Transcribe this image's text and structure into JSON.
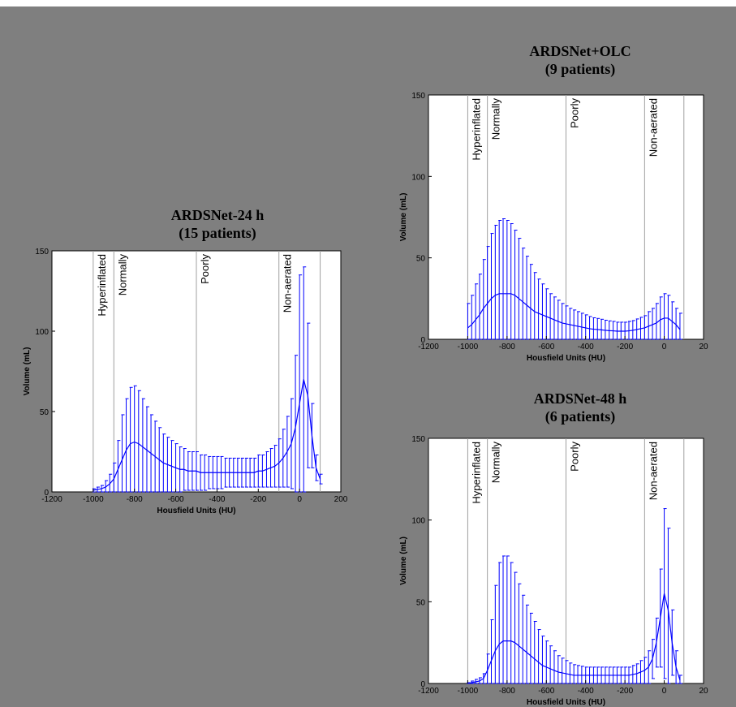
{
  "colors": {
    "background": "#7f7f7f",
    "plot_bg": "#ffffff",
    "series": "#0000ff",
    "divider": "#a0a0a0"
  },
  "chart_data": [
    {
      "type": "line",
      "title": [
        "ARDSNet-24 h",
        "(15 patients)"
      ],
      "xlabel": "Housfield Units (HU)",
      "ylabel": "Volume (mL)",
      "xlim": [
        -1200,
        200
      ],
      "ylim": [
        0,
        150
      ],
      "xticks": [
        "-1200",
        "-1000",
        "-800",
        "-600",
        "-400",
        "-200",
        "0",
        "200"
      ],
      "yticks": [
        "0",
        "50",
        "100",
        "150"
      ],
      "regions": [
        {
          "label": "Hyperinflated",
          "x": -1000
        },
        {
          "label": "Normally",
          "x": -900
        },
        {
          "label": "Poorly",
          "x": -500
        },
        {
          "label": "Non-aerated",
          "x": -100
        }
      ],
      "region_end": 100,
      "x": [
        -1000,
        -980,
        -960,
        -940,
        -920,
        -900,
        -880,
        -860,
        -840,
        -820,
        -800,
        -780,
        -760,
        -740,
        -720,
        -700,
        -680,
        -660,
        -640,
        -620,
        -600,
        -580,
        -560,
        -540,
        -520,
        -500,
        -480,
        -460,
        -440,
        -420,
        -400,
        -380,
        -360,
        -340,
        -320,
        -300,
        -280,
        -260,
        -240,
        -220,
        -200,
        -180,
        -160,
        -140,
        -120,
        -100,
        -80,
        -60,
        -40,
        -20,
        0,
        20,
        40,
        60,
        80,
        100
      ],
      "mean": [
        1,
        1.5,
        2,
        3,
        5,
        8,
        14,
        20,
        26,
        30,
        31,
        30,
        28,
        26,
        24,
        22,
        20,
        18,
        17,
        16,
        15,
        14,
        14,
        13,
        13,
        13,
        12,
        12,
        12,
        12,
        12,
        12,
        12,
        12,
        12,
        12,
        12,
        12,
        12,
        12,
        13,
        13,
        14,
        15,
        16,
        18,
        21,
        25,
        30,
        40,
        55,
        70,
        60,
        35,
        15,
        8
      ],
      "sd": [
        1,
        1.5,
        2,
        4,
        6,
        10,
        18,
        28,
        32,
        35,
        35,
        33,
        30,
        27,
        24,
        22,
        20,
        18,
        17,
        16,
        15,
        14,
        13,
        12,
        12,
        12,
        11,
        11,
        10,
        10,
        10,
        10,
        9,
        9,
        9,
        9,
        9,
        9,
        9,
        9,
        10,
        10,
        11,
        12,
        13,
        15,
        18,
        22,
        28,
        45,
        80,
        70,
        45,
        20,
        8,
        3
      ]
    },
    {
      "type": "line",
      "title": [
        "ARDSNet+OLC",
        "(9 patients)"
      ],
      "xlabel": "Housfield Units (HU)",
      "ylabel": "Volume (mL)",
      "xlim": [
        -1200,
        200
      ],
      "ylim": [
        0,
        150
      ],
      "xticks": [
        "-1200",
        "-1000",
        "-800",
        "-600",
        "-400",
        "-200",
        "0",
        "20"
      ],
      "yticks": [
        "0",
        "50",
        "100",
        "150"
      ],
      "regions": [
        {
          "label": "Hyperinflated",
          "x": -1000
        },
        {
          "label": "Normally",
          "x": -900
        },
        {
          "label": "Poorly",
          "x": -500
        },
        {
          "label": "Non-aerated",
          "x": -100
        }
      ],
      "region_end": 100,
      "x": [
        -1000,
        -980,
        -960,
        -940,
        -920,
        -900,
        -880,
        -860,
        -840,
        -820,
        -800,
        -780,
        -760,
        -740,
        -720,
        -700,
        -680,
        -660,
        -640,
        -620,
        -600,
        -580,
        -560,
        -540,
        -520,
        -500,
        -480,
        -460,
        -440,
        -420,
        -400,
        -380,
        -360,
        -340,
        -320,
        -300,
        -280,
        -260,
        -240,
        -220,
        -200,
        -180,
        -160,
        -140,
        -120,
        -100,
        -80,
        -60,
        -40,
        -20,
        0,
        20,
        40,
        60,
        80
      ],
      "mean": [
        7,
        9,
        12,
        15,
        19,
        22,
        25,
        27,
        28,
        28,
        28,
        28,
        27,
        25,
        23,
        21,
        19,
        17,
        16,
        15,
        14,
        13,
        12,
        11,
        10,
        9.5,
        9,
        8.5,
        8,
        7.5,
        7,
        6.5,
        6.2,
        6,
        5.8,
        5.5,
        5.3,
        5.2,
        5,
        5,
        5,
        5.2,
        5.5,
        6,
        6.5,
        7,
        8,
        9,
        10,
        12,
        13,
        13,
        11,
        9,
        6
      ],
      "sd": [
        15,
        18,
        22,
        25,
        30,
        35,
        40,
        43,
        45,
        46,
        45,
        43,
        40,
        37,
        33,
        30,
        27,
        24,
        21,
        19,
        17,
        15,
        14,
        13,
        12,
        11,
        10,
        9.5,
        9,
        8.5,
        8,
        7.5,
        7,
        6.8,
        6.5,
        6.2,
        6,
        5.8,
        5.5,
        5.5,
        5.5,
        5.8,
        6,
        6.5,
        7,
        7.5,
        9,
        10,
        12,
        14,
        15,
        14,
        12,
        10,
        10
      ]
    },
    {
      "type": "line",
      "title": [
        "ARDSNet-48 h",
        "(6 patients)"
      ],
      "xlabel": "Housfield Units (HU)",
      "ylabel": "Volume (mL)",
      "xlim": [
        -1200,
        200
      ],
      "ylim": [
        0,
        150
      ],
      "xticks": [
        "-1200",
        "-1000",
        "-800",
        "-600",
        "-400",
        "-200",
        "0",
        "20"
      ],
      "yticks": [
        "0",
        "50",
        "100",
        "150"
      ],
      "regions": [
        {
          "label": "Hyperinflated",
          "x": -1000
        },
        {
          "label": "Normally",
          "x": -900
        },
        {
          "label": "Poorly",
          "x": -500
        },
        {
          "label": "Non-aerated",
          "x": -100
        }
      ],
      "region_end": 100,
      "x": [
        -1000,
        -980,
        -960,
        -940,
        -920,
        -900,
        -880,
        -860,
        -840,
        -820,
        -800,
        -780,
        -760,
        -740,
        -720,
        -700,
        -680,
        -660,
        -640,
        -620,
        -600,
        -580,
        -560,
        -540,
        -520,
        -500,
        -480,
        -460,
        -440,
        -420,
        -400,
        -380,
        -360,
        -340,
        -320,
        -300,
        -280,
        -260,
        -240,
        -220,
        -200,
        -180,
        -160,
        -140,
        -120,
        -100,
        -80,
        -60,
        -40,
        -20,
        0,
        20,
        40,
        60,
        80
      ],
      "mean": [
        0,
        0.5,
        1,
        1.5,
        3,
        8,
        14,
        20,
        24,
        26,
        26,
        26,
        25,
        23,
        21,
        19,
        17,
        15,
        13,
        11,
        10,
        9,
        8,
        7,
        6.5,
        6,
        5.5,
        5,
        5,
        5,
        5,
        5,
        5,
        5,
        5,
        5,
        5,
        5,
        5,
        5,
        5,
        5,
        5.5,
        6,
        7,
        8,
        10,
        15,
        25,
        40,
        55,
        45,
        25,
        10,
        2
      ],
      "sd": [
        0.5,
        1,
        1.5,
        2,
        3,
        10,
        25,
        40,
        50,
        52,
        52,
        48,
        43,
        38,
        33,
        29,
        26,
        23,
        20,
        18,
        16,
        14,
        12,
        10,
        9,
        8,
        7,
        6.5,
        6,
        5.5,
        5,
        5,
        5,
        5,
        5,
        5,
        5,
        5,
        5,
        5,
        5,
        5,
        5.5,
        6,
        7,
        8,
        10,
        12,
        15,
        30,
        52,
        50,
        20,
        10,
        3
      ]
    }
  ]
}
